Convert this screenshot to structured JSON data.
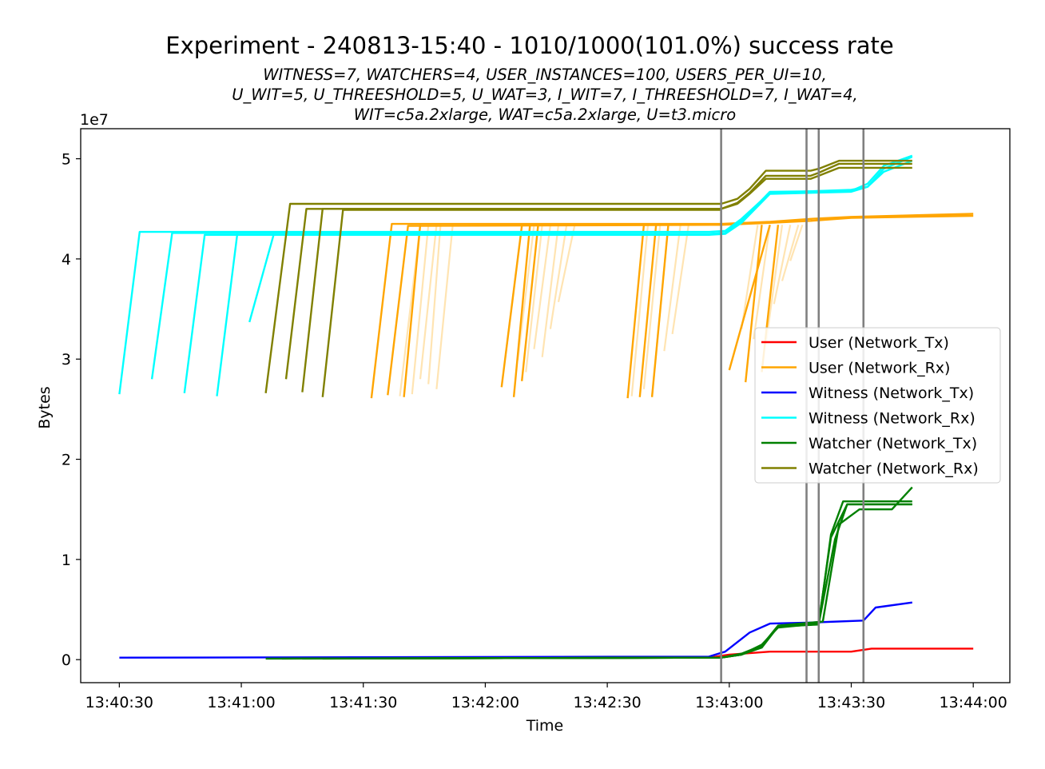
{
  "chart_data": {
    "type": "line",
    "title": "Experiment - 240813-15:40 - 1010/1000(101.0%) success rate",
    "subtitle": [
      "WITNESS=7, WATCHERS=4, USER_INSTANCES=100, USERS_PER_UI=10,",
      "U_WIT=5, U_THREESHOLD=5, U_WAT=3, I_WIT=7, I_THREESHOLD=7, I_WAT=4,",
      "WIT=c5a.2xlarge, WAT=c5a.2xlarge, U=t3.micro"
    ],
    "xlabel": "Time",
    "ylabel": "Bytes",
    "y_multiplier": "1e7",
    "xlim": [
      "13:40:20.5",
      "13:44:09"
    ],
    "ylim": [
      -0.23,
      5.3
    ],
    "x_ticks": [
      "13:40:30",
      "13:41:00",
      "13:41:30",
      "13:42:00",
      "13:42:30",
      "13:43:00",
      "13:43:30",
      "13:44:00"
    ],
    "y_ticks": [
      "0",
      "1",
      "2",
      "3",
      "4",
      "5"
    ],
    "vlines": [
      "13:42:58",
      "13:43:19",
      "13:43:22",
      "13:43:33"
    ],
    "legend_position": "center-right",
    "series": [
      {
        "name": "User (Network_Tx)",
        "color": "#ff0000",
        "lines": [
          {
            "x": [
              "13:41:33",
              "13:42:55",
              "13:43:00",
              "13:43:10",
              "13:43:30",
              "13:43:35",
              "13:44:00"
            ],
            "y": [
              0.02,
              0.02,
              0.05,
              0.08,
              0.08,
              0.11,
              0.11
            ]
          }
        ]
      },
      {
        "name": "User (Network_Rx)",
        "color": "#ffa500",
        "lines": [
          {
            "x": [
              "13:41:32",
              "13:41:37",
              "13:42:58",
              "13:43:10",
              "13:43:20",
              "13:43:30",
              "13:44:00"
            ],
            "y": [
              2.61,
              4.35,
              4.35,
              4.37,
              4.4,
              4.42,
              4.45
            ]
          },
          {
            "x": [
              "13:41:36",
              "13:41:41",
              "13:42:58",
              "13:43:10",
              "13:43:20",
              "13:43:30",
              "13:44:00"
            ],
            "y": [
              2.64,
              4.33,
              4.34,
              4.36,
              4.38,
              4.41,
              4.43
            ]
          },
          {
            "x": [
              "13:41:40",
              "13:41:44"
            ],
            "y": [
              2.62,
              4.34
            ]
          },
          {
            "x": [
              "13:42:04",
              "13:42:09"
            ],
            "y": [
              2.72,
              4.33
            ]
          },
          {
            "x": [
              "13:42:07",
              "13:42:11"
            ],
            "y": [
              2.62,
              4.34
            ]
          },
          {
            "x": [
              "13:42:09",
              "13:42:13"
            ],
            "y": [
              2.78,
              4.34
            ]
          },
          {
            "x": [
              "13:42:35",
              "13:42:39"
            ],
            "y": [
              2.61,
              4.34
            ]
          },
          {
            "x": [
              "13:42:38",
              "13:42:42"
            ],
            "y": [
              2.62,
              4.34
            ]
          },
          {
            "x": [
              "13:42:41",
              "13:42:45"
            ],
            "y": [
              2.62,
              4.34
            ]
          },
          {
            "x": [
              "13:43:00",
              "13:43:10"
            ],
            "y": [
              2.89,
              4.34
            ]
          },
          {
            "x": [
              "13:43:04",
              "13:43:08"
            ],
            "y": [
              2.77,
              4.34
            ]
          },
          {
            "x": [
              "13:43:08",
              "13:43:12"
            ],
            "y": [
              2.87,
              4.34
            ]
          }
        ],
        "faint_lines": [
          {
            "x": [
              "13:41:39",
              "13:41:44"
            ],
            "y": [
              2.63,
              4.34
            ]
          },
          {
            "x": [
              "13:41:42",
              "13:41:46"
            ],
            "y": [
              2.65,
              4.34
            ]
          },
          {
            "x": [
              "13:41:44",
              "13:41:48"
            ],
            "y": [
              2.8,
              4.34
            ]
          },
          {
            "x": [
              "13:41:46",
              "13:41:49"
            ],
            "y": [
              2.75,
              4.34
            ]
          },
          {
            "x": [
              "13:41:48",
              "13:41:52"
            ],
            "y": [
              2.7,
              4.34
            ]
          },
          {
            "x": [
              "13:42:05",
              "13:42:09"
            ],
            "y": [
              3.05,
              4.34
            ]
          },
          {
            "x": [
              "13:42:08",
              "13:42:12"
            ],
            "y": [
              2.99,
              4.34
            ]
          },
          {
            "x": [
              "13:42:10",
              "13:42:14"
            ],
            "y": [
              2.87,
              4.34
            ]
          },
          {
            "x": [
              "13:42:12",
              "13:42:16"
            ],
            "y": [
              3.1,
              4.34
            ]
          },
          {
            "x": [
              "13:42:14",
              "13:42:18"
            ],
            "y": [
              3.02,
              4.34
            ]
          },
          {
            "x": [
              "13:42:16",
              "13:42:20"
            ],
            "y": [
              3.3,
              4.34
            ]
          },
          {
            "x": [
              "13:42:18",
              "13:42:22"
            ],
            "y": [
              3.57,
              4.34
            ]
          },
          {
            "x": [
              "13:42:36",
              "13:42:40"
            ],
            "y": [
              2.63,
              4.34
            ]
          },
          {
            "x": [
              "13:42:39",
              "13:42:43"
            ],
            "y": [
              2.7,
              4.34
            ]
          },
          {
            "x": [
              "13:42:41",
              "13:42:45"
            ],
            "y": [
              2.63,
              4.34
            ]
          },
          {
            "x": [
              "13:42:44",
              "13:42:48"
            ],
            "y": [
              3.08,
              4.34
            ]
          },
          {
            "x": [
              "13:42:46",
              "13:42:50"
            ],
            "y": [
              3.25,
              4.34
            ]
          },
          {
            "x": [
              "13:43:03",
              "13:43:07"
            ],
            "y": [
              3.3,
              4.34
            ]
          },
          {
            "x": [
              "13:43:06",
              "13:43:10"
            ],
            "y": [
              3.2,
              4.34
            ]
          },
          {
            "x": [
              "13:43:09",
              "13:43:13"
            ],
            "y": [
              3.15,
              4.34
            ]
          },
          {
            "x": [
              "13:43:11",
              "13:43:15"
            ],
            "y": [
              3.55,
              4.34
            ]
          },
          {
            "x": [
              "13:43:13",
              "13:43:17"
            ],
            "y": [
              3.78,
              4.34
            ]
          },
          {
            "x": [
              "13:43:15",
              "13:43:18"
            ],
            "y": [
              3.98,
              4.34
            ]
          }
        ]
      },
      {
        "name": "Witness (Network_Tx)",
        "color": "#0000ff",
        "lines": [
          {
            "x": [
              "13:40:30",
              "13:42:55",
              "13:42:59",
              "13:43:05",
              "13:43:10",
              "13:43:20",
              "13:43:33",
              "13:43:36",
              "13:43:45"
            ],
            "y": [
              0.02,
              0.03,
              0.08,
              0.27,
              0.36,
              0.37,
              0.39,
              0.52,
              0.57
            ]
          }
        ]
      },
      {
        "name": "Witness (Network_Rx)",
        "color": "#00ffff",
        "lines": [
          {
            "x": [
              "13:40:30",
              "13:40:35",
              "13:42:55",
              "13:42:59",
              "13:43:03",
              "13:43:10",
              "13:43:30",
              "13:43:34",
              "13:43:38",
              "13:43:45"
            ],
            "y": [
              2.65,
              4.27,
              4.27,
              4.28,
              4.4,
              4.66,
              4.69,
              4.72,
              4.9,
              5.02
            ]
          },
          {
            "x": [
              "13:40:38",
              "13:40:43",
              "13:42:55",
              "13:42:59",
              "13:43:03",
              "13:43:10",
              "13:43:30",
              "13:43:34",
              "13:43:38",
              "13:43:45"
            ],
            "y": [
              2.8,
              4.26,
              4.25,
              4.26,
              4.38,
              4.67,
              4.68,
              4.75,
              4.93,
              5.03
            ]
          },
          {
            "x": [
              "13:40:46",
              "13:40:51",
              "13:42:55",
              "13:42:59",
              "13:43:03",
              "13:43:10",
              "13:43:30",
              "13:43:34",
              "13:43:38",
              "13:43:45"
            ],
            "y": [
              2.66,
              4.24,
              4.24,
              4.25,
              4.36,
              4.65,
              4.67,
              4.72,
              4.87,
              4.98
            ]
          },
          {
            "x": [
              "13:40:54",
              "13:40:59"
            ],
            "y": [
              2.63,
              4.25
            ]
          },
          {
            "x": [
              "13:41:02",
              "13:41:08"
            ],
            "y": [
              3.37,
              4.25
            ]
          }
        ]
      },
      {
        "name": "Watcher (Network_Tx)",
        "color": "#008000",
        "lines": [
          {
            "x": [
              "13:41:06",
              "13:42:58",
              "13:43:03",
              "13:43:08",
              "13:43:12",
              "13:43:22",
              "13:43:26",
              "13:43:29",
              "13:43:45"
            ],
            "y": [
              0.01,
              0.02,
              0.05,
              0.15,
              0.32,
              0.36,
              1.2,
              1.55,
              1.55
            ]
          },
          {
            "x": [
              "13:41:10",
              "13:42:58",
              "13:43:03",
              "13:43:08",
              "13:43:12",
              "13:43:22",
              "13:43:25",
              "13:43:28",
              "13:43:45"
            ],
            "y": [
              0.01,
              0.02,
              0.05,
              0.13,
              0.33,
              0.35,
              1.25,
              1.58,
              1.58
            ]
          },
          {
            "x": [
              "13:41:15",
              "13:42:58",
              "13:43:03",
              "13:43:08",
              "13:43:12",
              "13:43:23",
              "13:43:27",
              "13:43:32",
              "13:43:40",
              "13:43:45"
            ],
            "y": [
              0.01,
              0.02,
              0.06,
              0.14,
              0.34,
              0.38,
              1.35,
              1.5,
              1.5,
              1.72
            ]
          },
          {
            "x": [
              "13:41:20",
              "13:42:58",
              "13:43:03",
              "13:43:08",
              "13:43:12",
              "13:43:22",
              "13:43:25",
              "13:43:29",
              "13:43:45"
            ],
            "y": [
              0.01,
              0.02,
              0.05,
              0.12,
              0.33,
              0.37,
              1.22,
              1.55,
              1.55
            ]
          }
        ]
      },
      {
        "name": "Watcher (Network_Rx)",
        "color": "#808000",
        "lines": [
          {
            "x": [
              "13:41:06",
              "13:41:12",
              "13:42:58",
              "13:43:02",
              "13:43:05",
              "13:43:09",
              "13:43:20",
              "13:43:22",
              "13:43:27",
              "13:43:45"
            ],
            "y": [
              2.66,
              4.55,
              4.55,
              4.6,
              4.7,
              4.88,
              4.88,
              4.9,
              4.98,
              4.98
            ]
          },
          {
            "x": [
              "13:41:11",
              "13:41:16",
              "13:42:58",
              "13:43:02",
              "13:43:05",
              "13:43:09",
              "13:43:20",
              "13:43:22",
              "13:43:27",
              "13:43:45"
            ],
            "y": [
              2.8,
              4.5,
              4.5,
              4.56,
              4.66,
              4.83,
              4.83,
              4.86,
              4.95,
              4.95
            ]
          },
          {
            "x": [
              "13:41:15",
              "13:41:20",
              "13:42:58",
              "13:43:02",
              "13:43:05",
              "13:43:09",
              "13:43:20",
              "13:43:22",
              "13:43:27",
              "13:43:45"
            ],
            "y": [
              2.67,
              4.5,
              4.5,
              4.55,
              4.65,
              4.8,
              4.8,
              4.83,
              4.91,
              4.91
            ]
          },
          {
            "x": [
              "13:41:20",
              "13:41:25",
              "13:42:58"
            ],
            "y": [
              2.62,
              4.49,
              4.49
            ]
          }
        ]
      }
    ]
  }
}
